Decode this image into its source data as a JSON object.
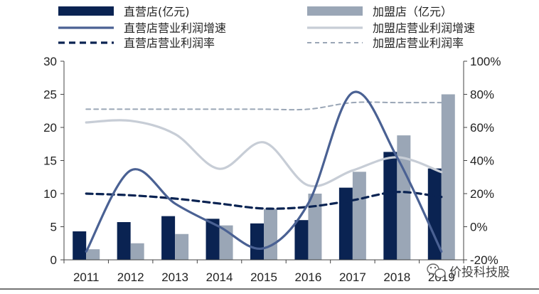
{
  "chart_data": {
    "type": "bar",
    "categories": [
      "2011",
      "2012",
      "2013",
      "2014",
      "2015",
      "2016",
      "2017",
      "2018",
      "2019"
    ],
    "bar_series": [
      {
        "name": "直营店(亿元)",
        "axis": "left",
        "color": "#0a2352",
        "values": [
          4.3,
          5.7,
          6.6,
          6.2,
          5.5,
          6.0,
          10.9,
          16.3,
          13.8
        ]
      },
      {
        "name": "加盟店（亿元）",
        "axis": "left",
        "color": "#9aa6b6",
        "values": [
          1.6,
          2.5,
          3.9,
          5.2,
          7.7,
          10.0,
          13.3,
          18.8,
          25.0
        ]
      }
    ],
    "line_series": [
      {
        "name": "直营店营业利润增速",
        "axis": "right",
        "style": "solid",
        "color": "#4a6193",
        "values": [
          -15,
          34,
          14,
          0,
          -13,
          14,
          81,
          42,
          -15
        ]
      },
      {
        "name": "加盟店营业利润增速",
        "axis": "right",
        "style": "solid",
        "color": "#c7cdd6",
        "values": [
          63,
          64,
          56,
          35,
          51,
          25,
          34,
          42,
          33
        ]
      },
      {
        "name": "直营店营业利润率",
        "axis": "right",
        "style": "dashed",
        "color": "#0a2352",
        "values": [
          20,
          19,
          17,
          14,
          11,
          12,
          16,
          21,
          18
        ]
      },
      {
        "name": "加盟店营业利润率",
        "axis": "right",
        "style": "dashed",
        "color": "#9aa6b6",
        "values": [
          71,
          71,
          71,
          71,
          71,
          71,
          75,
          75,
          75
        ]
      }
    ],
    "left_axis": {
      "ylim": [
        0,
        30
      ],
      "ticks": [
        "0",
        "5",
        "10",
        "15",
        "20",
        "25",
        "30"
      ]
    },
    "right_axis": {
      "ylim": [
        -20,
        100
      ],
      "ticks": [
        "-20%",
        "0%",
        "20%",
        "40%",
        "60%",
        "80%",
        "100%"
      ]
    },
    "grid": false,
    "legend_position": "top",
    "title": "",
    "xlabel": "",
    "ylabel": ""
  },
  "watermark": {
    "text": "价投科技股",
    "icon": "wechat-icon"
  }
}
